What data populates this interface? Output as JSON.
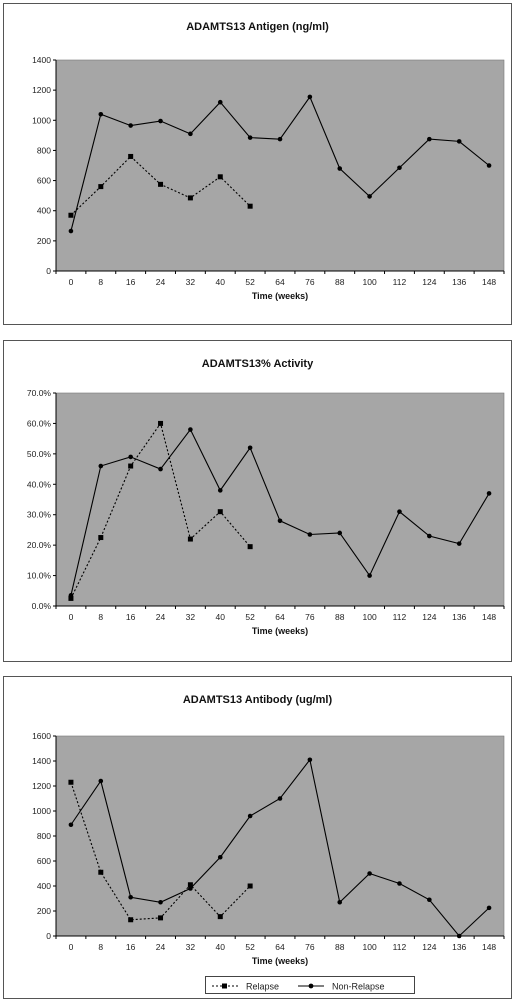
{
  "chart_data": [
    {
      "type": "line",
      "title": "ADAMTS13 Antigen (ng/ml)",
      "xlabel": "Time (weeks)",
      "ylabel": "",
      "categories": [
        "0",
        "8",
        "16",
        "24",
        "32",
        "40",
        "52",
        "64",
        "76",
        "88",
        "100",
        "112",
        "124",
        "136",
        "148"
      ],
      "ylim": [
        0,
        1400
      ],
      "yticks": [
        0,
        200,
        400,
        600,
        800,
        1000,
        1200,
        1400
      ],
      "ytick_labels": [
        "0",
        "200",
        "400",
        "600",
        "800",
        "1000",
        "1200",
        "1400"
      ],
      "grid": false,
      "series": [
        {
          "name": "Relapse",
          "style": "dotted",
          "marker": "square",
          "values": [
            370,
            560,
            760,
            575,
            485,
            625,
            430,
            null,
            null,
            null,
            null,
            null,
            null,
            null,
            null
          ]
        },
        {
          "name": "Non-Relapse",
          "style": "solid",
          "marker": "dot",
          "values": [
            265,
            1040,
            965,
            995,
            910,
            1120,
            885,
            875,
            1155,
            680,
            495,
            685,
            875,
            860,
            700
          ]
        }
      ]
    },
    {
      "type": "line",
      "title": "ADAMTS13% Activity",
      "xlabel": "Time (weeks)",
      "ylabel": "",
      "categories": [
        "0",
        "8",
        "16",
        "24",
        "32",
        "40",
        "52",
        "64",
        "76",
        "88",
        "100",
        "112",
        "124",
        "136",
        "148"
      ],
      "ylim": [
        0,
        70
      ],
      "yticks": [
        0,
        10,
        20,
        30,
        40,
        50,
        60,
        70
      ],
      "ytick_labels": [
        "0.0%",
        "10.0%",
        "20.0%",
        "30.0%",
        "40.0%",
        "50.0%",
        "60.0%",
        "70.0%"
      ],
      "grid": false,
      "series": [
        {
          "name": "Relapse",
          "style": "dotted",
          "marker": "square",
          "values": [
            2.5,
            22.5,
            46,
            60,
            22,
            31,
            19.5,
            null,
            null,
            null,
            null,
            null,
            null,
            null,
            null
          ]
        },
        {
          "name": "Non-Relapse",
          "style": "solid",
          "marker": "dot",
          "values": [
            3.5,
            46,
            49,
            45,
            58,
            38,
            52,
            28,
            23.5,
            24,
            10,
            31,
            23,
            20.5,
            37
          ]
        }
      ]
    },
    {
      "type": "line",
      "title": "ADAMTS13 Antibody (ug/ml)",
      "xlabel": "Time (weeks)",
      "ylabel": "",
      "categories": [
        "0",
        "8",
        "16",
        "24",
        "32",
        "40",
        "52",
        "64",
        "76",
        "88",
        "100",
        "112",
        "124",
        "136",
        "148"
      ],
      "ylim": [
        0,
        1600
      ],
      "yticks": [
        0,
        200,
        400,
        600,
        800,
        1000,
        1200,
        1400,
        1600
      ],
      "ytick_labels": [
        "0",
        "200",
        "400",
        "600",
        "800",
        "1000",
        "1200",
        "1400",
        "1600"
      ],
      "grid": false,
      "series": [
        {
          "name": "Relapse",
          "style": "dotted",
          "marker": "square",
          "values": [
            1230,
            510,
            130,
            145,
            410,
            155,
            400,
            null,
            null,
            null,
            null,
            null,
            null,
            null,
            null
          ]
        },
        {
          "name": "Non-Relapse",
          "style": "solid",
          "marker": "dot",
          "values": [
            890,
            1240,
            310,
            270,
            380,
            630,
            960,
            1100,
            1410,
            270,
            500,
            420,
            290,
            0,
            225
          ]
        }
      ]
    }
  ],
  "legend": {
    "placement": "bottom-center",
    "items": [
      "Relapse",
      "Non-Relapse"
    ]
  },
  "colors": {
    "plot_area": "#a6a6a6",
    "line": "#000000",
    "panel_border": "#555555"
  }
}
